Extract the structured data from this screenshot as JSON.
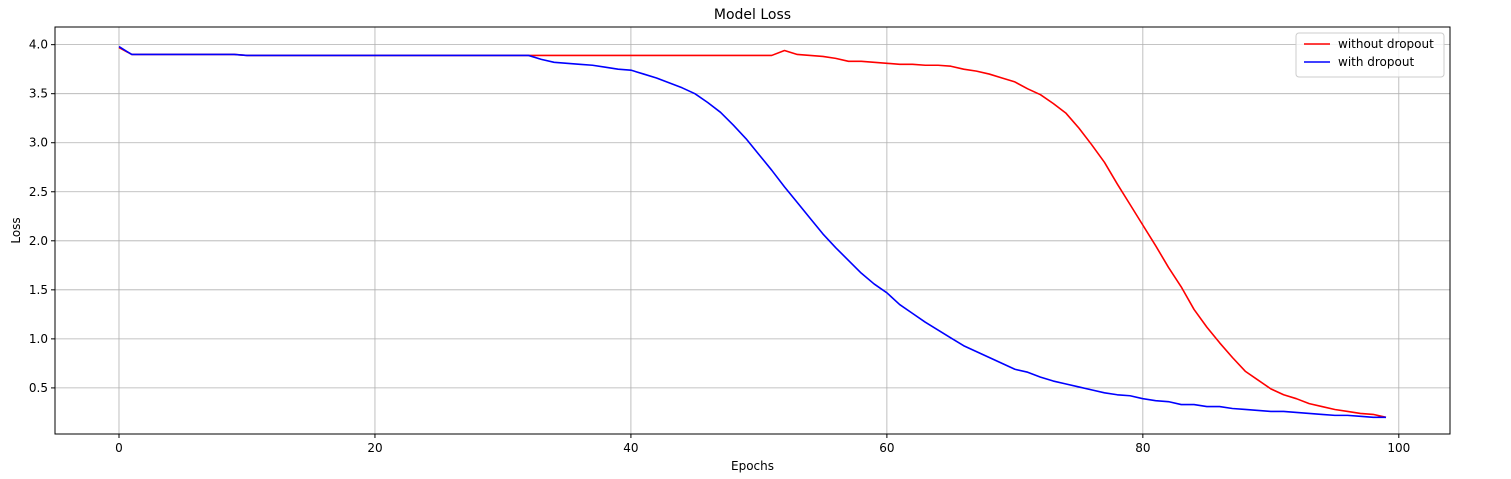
{
  "chart_data": {
    "type": "line",
    "title": "Model Loss",
    "xlabel": "Epochs",
    "ylabel": "Loss",
    "xlim": [
      -5,
      104
    ],
    "ylim": [
      0.03,
      4.18
    ],
    "xticks": [
      0,
      20,
      40,
      60,
      80,
      100
    ],
    "yticks": [
      0.5,
      1.0,
      1.5,
      2.0,
      2.5,
      3.0,
      3.5,
      4.0
    ],
    "xtick_labels": [
      "0",
      "20",
      "40",
      "60",
      "80",
      "100"
    ],
    "ytick_labels": [
      "0.5",
      "1.0",
      "1.5",
      "2.0",
      "2.5",
      "3.0",
      "3.5",
      "4.0"
    ],
    "grid": true,
    "legend_position": "top-right",
    "colors": {
      "without dropout": "#ff0000",
      "with dropout": "#0000ff"
    },
    "x": [
      0,
      1,
      2,
      3,
      4,
      5,
      6,
      7,
      8,
      9,
      10,
      11,
      12,
      13,
      14,
      15,
      16,
      17,
      18,
      19,
      20,
      21,
      22,
      23,
      24,
      25,
      26,
      27,
      28,
      29,
      30,
      31,
      32,
      33,
      34,
      35,
      36,
      37,
      38,
      39,
      40,
      41,
      42,
      43,
      44,
      45,
      46,
      47,
      48,
      49,
      50,
      51,
      52,
      53,
      54,
      55,
      56,
      57,
      58,
      59,
      60,
      61,
      62,
      63,
      64,
      65,
      66,
      67,
      68,
      69,
      70,
      71,
      72,
      73,
      74,
      75,
      76,
      77,
      78,
      79,
      80,
      81,
      82,
      83,
      84,
      85,
      86,
      87,
      88,
      89,
      90,
      91,
      92,
      93,
      94,
      95,
      96,
      97,
      98,
      99
    ],
    "series": [
      {
        "name": "without dropout",
        "values": [
          3.97,
          3.9,
          3.9,
          3.9,
          3.9,
          3.9,
          3.9,
          3.9,
          3.9,
          3.9,
          3.89,
          3.89,
          3.89,
          3.89,
          3.89,
          3.89,
          3.89,
          3.89,
          3.89,
          3.89,
          3.89,
          3.89,
          3.89,
          3.89,
          3.89,
          3.89,
          3.89,
          3.89,
          3.89,
          3.89,
          3.89,
          3.89,
          3.89,
          3.89,
          3.89,
          3.89,
          3.89,
          3.89,
          3.89,
          3.89,
          3.89,
          3.89,
          3.89,
          3.89,
          3.89,
          3.89,
          3.89,
          3.89,
          3.89,
          3.89,
          3.89,
          3.89,
          3.94,
          3.9,
          3.89,
          3.88,
          3.86,
          3.83,
          3.83,
          3.82,
          3.81,
          3.8,
          3.8,
          3.79,
          3.79,
          3.78,
          3.75,
          3.73,
          3.7,
          3.66,
          3.62,
          3.55,
          3.49,
          3.4,
          3.3,
          3.15,
          2.98,
          2.8,
          2.58,
          2.37,
          2.16,
          1.95,
          1.73,
          1.53,
          1.3,
          1.12,
          0.96,
          0.81,
          0.67,
          0.58,
          0.49,
          0.43,
          0.39,
          0.34,
          0.31,
          0.28,
          0.26,
          0.24,
          0.23,
          0.2
        ]
      },
      {
        "name": "with dropout",
        "values": [
          3.98,
          3.9,
          3.9,
          3.9,
          3.9,
          3.9,
          3.9,
          3.9,
          3.9,
          3.9,
          3.89,
          3.89,
          3.89,
          3.89,
          3.89,
          3.89,
          3.89,
          3.89,
          3.89,
          3.89,
          3.89,
          3.89,
          3.89,
          3.89,
          3.89,
          3.89,
          3.89,
          3.89,
          3.89,
          3.89,
          3.89,
          3.89,
          3.89,
          3.85,
          3.82,
          3.81,
          3.8,
          3.79,
          3.77,
          3.75,
          3.74,
          3.7,
          3.66,
          3.61,
          3.56,
          3.5,
          3.41,
          3.31,
          3.18,
          3.04,
          2.88,
          2.72,
          2.55,
          2.39,
          2.23,
          2.07,
          1.93,
          1.8,
          1.67,
          1.56,
          1.47,
          1.35,
          1.26,
          1.17,
          1.09,
          1.01,
          0.93,
          0.87,
          0.81,
          0.75,
          0.69,
          0.66,
          0.61,
          0.57,
          0.54,
          0.51,
          0.48,
          0.45,
          0.43,
          0.42,
          0.39,
          0.37,
          0.36,
          0.33,
          0.33,
          0.31,
          0.31,
          0.29,
          0.28,
          0.27,
          0.26,
          0.26,
          0.25,
          0.24,
          0.23,
          0.22,
          0.22,
          0.21,
          0.2,
          0.2
        ]
      }
    ]
  }
}
